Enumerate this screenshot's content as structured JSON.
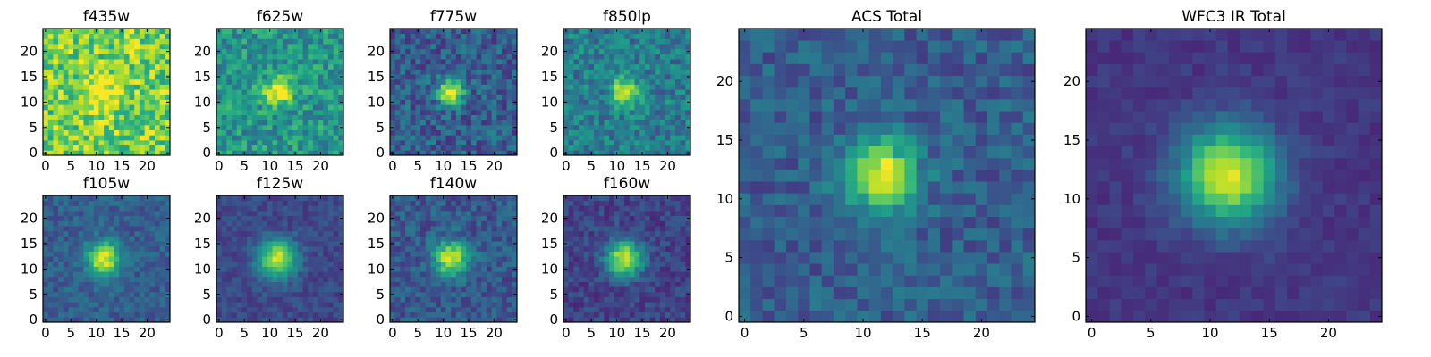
{
  "figure": {
    "colormap": "viridis",
    "colormap_stops": [
      "#440154",
      "#482878",
      "#3e4989",
      "#31688e",
      "#26828e",
      "#1f9e89",
      "#35b779",
      "#6ece58",
      "#b5de2b",
      "#fde725"
    ]
  },
  "chart_data": [
    {
      "type": "heatmap",
      "id": "f435w",
      "title": "f435w",
      "xticks": [
        "0",
        "5",
        "10",
        "15",
        "20"
      ],
      "yticks": [
        "0",
        "5",
        "10",
        "15",
        "20"
      ],
      "xlim": [
        0,
        24
      ],
      "ylim": [
        0,
        24
      ],
      "grid_size": 25,
      "source_center": [
        11.5,
        12
      ],
      "peak_brightness": 0.25,
      "sigma": 2.6,
      "background_level": 0.78,
      "noise_level": 0.22,
      "grid": false
    },
    {
      "type": "heatmap",
      "id": "f625w",
      "title": "f625w",
      "xticks": [
        "0",
        "5",
        "10",
        "15",
        "20"
      ],
      "yticks": [
        "0",
        "5",
        "10",
        "15",
        "20"
      ],
      "xlim": [
        0,
        24
      ],
      "ylim": [
        0,
        24
      ],
      "grid_size": 25,
      "source_center": [
        11.5,
        12
      ],
      "peak_brightness": 0.55,
      "sigma": 1.9,
      "background_level": 0.52,
      "noise_level": 0.18,
      "grid": false
    },
    {
      "type": "heatmap",
      "id": "f775w",
      "title": "f775w",
      "xticks": [
        "0",
        "5",
        "10",
        "15",
        "20"
      ],
      "yticks": [
        "0",
        "5",
        "10",
        "15",
        "20"
      ],
      "xlim": [
        0,
        24
      ],
      "ylim": [
        0,
        24
      ],
      "grid_size": 25,
      "source_center": [
        11.5,
        12
      ],
      "peak_brightness": 0.72,
      "sigma": 1.8,
      "background_level": 0.3,
      "noise_level": 0.16,
      "grid": false
    },
    {
      "type": "heatmap",
      "id": "f850lp",
      "title": "f850lp",
      "xticks": [
        "0",
        "5",
        "10",
        "15",
        "20"
      ],
      "yticks": [
        "0",
        "5",
        "10",
        "15",
        "20"
      ],
      "xlim": [
        0,
        24
      ],
      "ylim": [
        0,
        24
      ],
      "grid_size": 25,
      "source_center": [
        11.5,
        12
      ],
      "peak_brightness": 0.55,
      "sigma": 1.9,
      "background_level": 0.42,
      "noise_level": 0.16,
      "grid": false
    },
    {
      "type": "heatmap",
      "id": "f105w",
      "title": "f105w",
      "xticks": [
        "0",
        "5",
        "10",
        "15",
        "20"
      ],
      "yticks": [
        "0",
        "5",
        "10",
        "15",
        "20"
      ],
      "xlim": [
        0,
        24
      ],
      "ylim": [
        0,
        24
      ],
      "grid_size": 25,
      "source_center": [
        11.5,
        12
      ],
      "peak_brightness": 0.68,
      "sigma": 2.3,
      "background_level": 0.3,
      "noise_level": 0.1,
      "grid": false
    },
    {
      "type": "heatmap",
      "id": "f125w",
      "title": "f125w",
      "xticks": [
        "0",
        "5",
        "10",
        "15",
        "20"
      ],
      "yticks": [
        "0",
        "5",
        "10",
        "15",
        "20"
      ],
      "xlim": [
        0,
        24
      ],
      "ylim": [
        0,
        24
      ],
      "grid_size": 25,
      "source_center": [
        11.5,
        12
      ],
      "peak_brightness": 0.72,
      "sigma": 2.6,
      "background_level": 0.22,
      "noise_level": 0.08,
      "grid": false
    },
    {
      "type": "heatmap",
      "id": "f140w",
      "title": "f140w",
      "xticks": [
        "0",
        "5",
        "10",
        "15",
        "20"
      ],
      "yticks": [
        "0",
        "5",
        "10",
        "15",
        "20"
      ],
      "xlim": [
        0,
        24
      ],
      "ylim": [
        0,
        24
      ],
      "grid_size": 25,
      "source_center": [
        11.5,
        12
      ],
      "peak_brightness": 0.66,
      "sigma": 2.4,
      "background_level": 0.28,
      "noise_level": 0.12,
      "grid": false
    },
    {
      "type": "heatmap",
      "id": "f160w",
      "title": "f160w",
      "xticks": [
        "0",
        "5",
        "10",
        "15",
        "20"
      ],
      "yticks": [
        "0",
        "5",
        "10",
        "15",
        "20"
      ],
      "xlim": [
        0,
        24
      ],
      "ylim": [
        0,
        24
      ],
      "grid_size": 25,
      "source_center": [
        11.5,
        12
      ],
      "peak_brightness": 0.74,
      "sigma": 2.5,
      "background_level": 0.2,
      "noise_level": 0.1,
      "grid": false
    },
    {
      "type": "heatmap",
      "id": "acs-total",
      "title": "ACS Total",
      "xticks": [
        "0",
        "5",
        "10",
        "15",
        "20"
      ],
      "yticks": [
        "0",
        "5",
        "10",
        "15",
        "20"
      ],
      "xlim": [
        0,
        24
      ],
      "ylim": [
        0,
        24
      ],
      "grid_size": 25,
      "source_center": [
        11.5,
        12
      ],
      "peak_brightness": 0.7,
      "sigma": 2.1,
      "background_level": 0.3,
      "noise_level": 0.12,
      "grid": false
    },
    {
      "type": "heatmap",
      "id": "wfc3-ir-total",
      "title": "WFC3 IR Total",
      "xticks": [
        "0",
        "5",
        "10",
        "15",
        "20"
      ],
      "yticks": [
        "0",
        "5",
        "10",
        "15",
        "20"
      ],
      "xlim": [
        0,
        24
      ],
      "ylim": [
        0,
        24
      ],
      "grid_size": 25,
      "source_center": [
        11.5,
        12
      ],
      "peak_brightness": 0.78,
      "sigma": 2.9,
      "background_level": 0.16,
      "noise_level": 0.05,
      "grid": false
    }
  ]
}
